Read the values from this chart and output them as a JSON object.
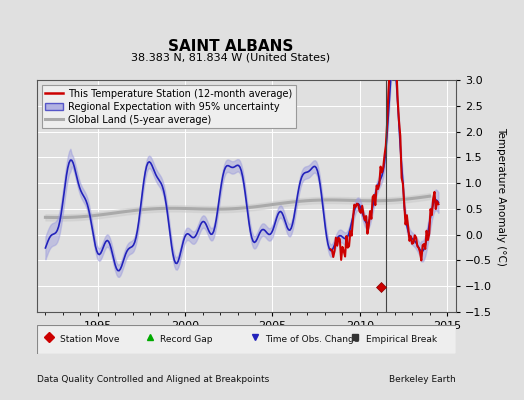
{
  "title": "SAINT ALBANS",
  "subtitle": "38.383 N, 81.834 W (United States)",
  "ylabel": "Temperature Anomaly (°C)",
  "footer_left": "Data Quality Controlled and Aligned at Breakpoints",
  "footer_right": "Berkeley Earth",
  "xlim": [
    1991.5,
    2015.5
  ],
  "ylim": [
    -1.5,
    3.0
  ],
  "yticks": [
    -1.5,
    -1.0,
    -0.5,
    0.0,
    0.5,
    1.0,
    1.5,
    2.0,
    2.5,
    3.0
  ],
  "xticks": [
    1995,
    2000,
    2005,
    2010,
    2015
  ],
  "bg_color": "#e0e0e0",
  "plot_bg_color": "#e0e0e0",
  "grid_color": "#ffffff",
  "station_marker_year": 2011.2,
  "station_marker_val": -1.02,
  "vertical_line_year": 2011.5,
  "legend_items": [
    {
      "label": "This Temperature Station (12-month average)",
      "color": "#cc0000",
      "lw": 2.0
    },
    {
      "label": "Regional Expectation with 95% uncertainty",
      "color": "#3333cc",
      "lw": 1.5
    },
    {
      "label": "Global Land (5-year average)",
      "color": "#aaaaaa",
      "lw": 2.5
    }
  ],
  "bottom_legend": [
    {
      "label": "Station Move",
      "marker": "D",
      "color": "#cc0000"
    },
    {
      "label": "Record Gap",
      "marker": "^",
      "color": "#00aa00"
    },
    {
      "label": "Time of Obs. Change",
      "marker": "v",
      "color": "#3333cc"
    },
    {
      "label": "Empirical Break",
      "marker": "s",
      "color": "#333333"
    }
  ],
  "title_fontsize": 11,
  "subtitle_fontsize": 8,
  "label_fontsize": 7.5,
  "tick_fontsize": 8,
  "legend_fontsize": 7.0
}
